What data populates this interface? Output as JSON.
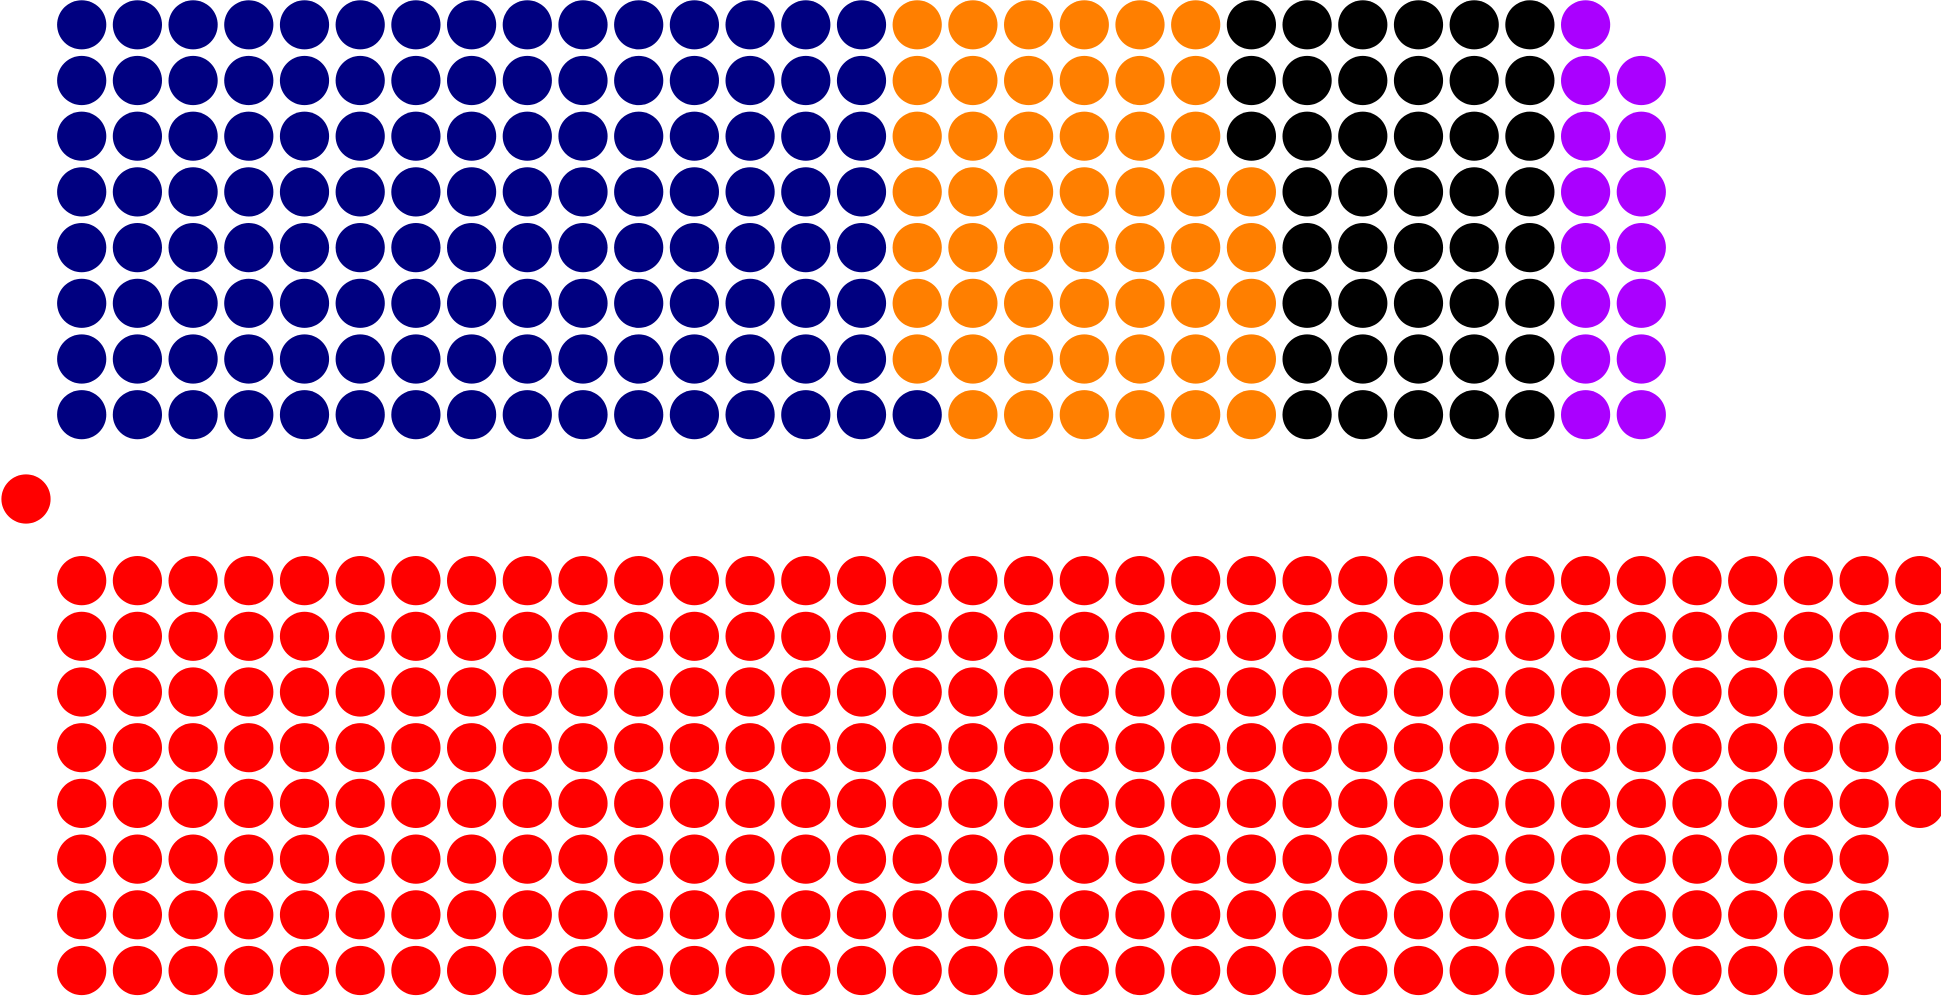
{
  "chart_data": {
    "type": "seats",
    "rows": 8,
    "top": [
      {
        "color": "#000080",
        "seats": 121
      },
      {
        "color": "#ff7f00",
        "seats": 52
      },
      {
        "color": "#000000",
        "seats": 43
      },
      {
        "color": "#aa00ff",
        "seats": 15
      }
    ],
    "center": {
      "color": "#ff0000",
      "seats": 1
    },
    "bottom": [
      {
        "color": "#ff0000",
        "seats": 269
      }
    ]
  }
}
